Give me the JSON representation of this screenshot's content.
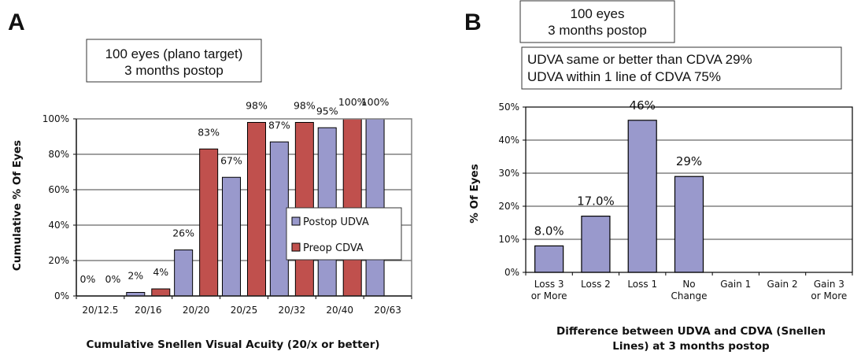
{
  "panels": {
    "a": {
      "label": "A",
      "info_box": [
        "100 eyes (plano target)",
        "3 months postop"
      ],
      "chart_data": {
        "type": "bar",
        "xlabel": "Cumulative Snellen Visual Acuity (20/x or better)",
        "ylabel": "Cumulative % Of Eyes",
        "categories": [
          "20/12.5",
          "20/16",
          "20/20",
          "20/25",
          "20/32",
          "20/40",
          "20/63"
        ],
        "ylim": [
          0,
          100
        ],
        "yticks": [
          "0%",
          "20%",
          "40%",
          "60%",
          "80%",
          "100%"
        ],
        "grid": true,
        "legend_position": "right",
        "series": [
          {
            "name": "Postop UDVA",
            "color": "#9999cc",
            "values": [
              0,
              2,
              26,
              67,
              87,
              95,
              100
            ],
            "labels": [
              "0%",
              "2%",
              "26%",
              "67%",
              "87%",
              "95%",
              "100%"
            ]
          },
          {
            "name": "Preop CDVA",
            "color": "#c0504d",
            "values": [
              0,
              4,
              83,
              98,
              98,
              100,
              null
            ],
            "labels": [
              "0%",
              "4%",
              "83%",
              "98%",
              "98%",
              "100%",
              ""
            ]
          }
        ]
      }
    },
    "b": {
      "label": "B",
      "info_box": [
        "100 eyes",
        "3 months postop"
      ],
      "stats_box": [
        "UDVA same or better than CDVA 29%",
        "UDVA within 1 line of CDVA 75%"
      ],
      "chart_data": {
        "type": "bar",
        "xlabel": "Difference between UDVA and CDVA (Snellen Lines) at 3 months postop",
        "xlabel_lines": [
          "Difference between UDVA and CDVA (Snellen",
          "Lines) at 3 months postop"
        ],
        "ylabel": "% Of Eyes",
        "categories": [
          "Loss 3 or More",
          "Loss 2",
          "Loss 1",
          "No Change",
          "Gain 1",
          "Gain 2",
          "Gain 3 or More"
        ],
        "category_lines": [
          [
            "Loss 3",
            "or More"
          ],
          [
            "Loss 2"
          ],
          [
            "Loss 1"
          ],
          [
            "No",
            "Change"
          ],
          [
            "Gain 1"
          ],
          [
            "Gain 2"
          ],
          [
            "Gain 3",
            "or More"
          ]
        ],
        "ylim": [
          0,
          50
        ],
        "yticks": [
          "0%",
          "10%",
          "20%",
          "30%",
          "40%",
          "50%"
        ],
        "grid": true,
        "series": [
          {
            "color": "#9999cc",
            "values": [
              8,
              17,
              46,
              29,
              0,
              0,
              0
            ],
            "labels": [
              "8.0%",
              "17.0%",
              "46%",
              "29%",
              "",
              "",
              ""
            ]
          }
        ]
      }
    }
  }
}
